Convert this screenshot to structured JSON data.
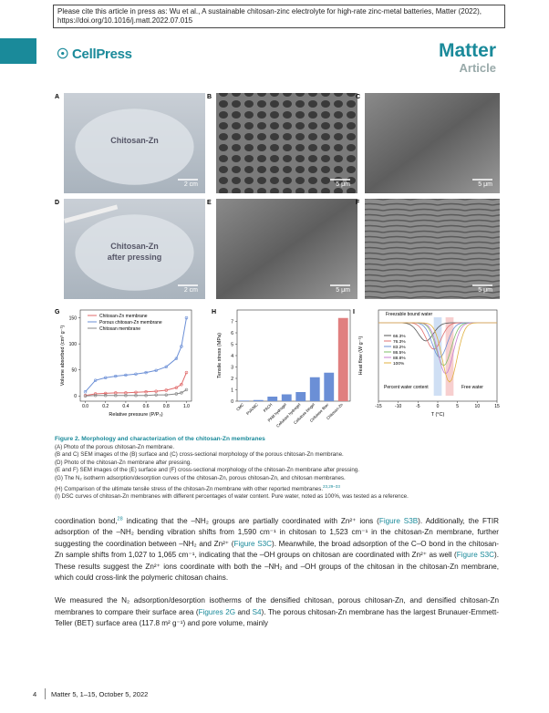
{
  "header": {
    "citation": "Please cite this article in press as: Wu et al., A sustainable chitosan-zinc electrolyte for high-rate zinc-metal batteries, Matter (2022), https://doi.org/10.1016/j.matt.2022.07.015",
    "publisher": "CellPress",
    "journal": "Matter",
    "article_type": "Article"
  },
  "figure": {
    "panels": [
      {
        "label": "A",
        "texts": [
          "Chitosan-Zn",
          "2 cm"
        ]
      },
      {
        "label": "B",
        "texts": [
          "5 μm"
        ]
      },
      {
        "label": "C",
        "texts": [
          "5 μm"
        ]
      },
      {
        "label": "D",
        "texts": [
          "Chitosan-Zn",
          "after pressing",
          "2 cm"
        ]
      },
      {
        "label": "E",
        "texts": [
          "5 μm"
        ]
      },
      {
        "label": "F",
        "texts": [
          "5 μm"
        ]
      }
    ],
    "charts": [
      {
        "type": "line",
        "label": "G",
        "xlabel": "Relative pressure (P/P₀)",
        "ylabel": "Volume absorbed (cm³ g⁻¹)",
        "x": [
          0,
          0.1,
          0.2,
          0.3,
          0.4,
          0.5,
          0.6,
          0.7,
          0.8,
          0.9,
          0.95,
          1.0
        ],
        "xlim": [
          -0.05,
          1.05
        ],
        "xticks": [
          {
            "value": 0,
            "label": "0.0"
          },
          0.2,
          0.4,
          0.6,
          0.8,
          {
            "value": 1,
            "label": "1.0"
          }
        ],
        "ylim": [
          -10,
          165
        ],
        "yticks": [
          0,
          50,
          100,
          150
        ],
        "series": [
          {
            "name": "Chitosan-Zn membrane",
            "color": "#e06a6a",
            "values": [
              1,
              4,
              5,
              6,
              6,
              7,
              8,
              9,
              11,
              16,
              22,
              45
            ]
          },
          {
            "name": "Porous chitosan-Zn membrane",
            "color": "#6b8fd6",
            "values": [
              8,
              30,
              35,
              38,
              40,
              42,
              45,
              49,
              56,
              72,
              95,
              150
            ]
          },
          {
            "name": "Chitosan membrane",
            "color": "#888888",
            "values": [
              0,
              1,
              1,
              1,
              1,
              1,
              1,
              2,
              2,
              4,
              6,
              12
            ]
          }
        ]
      },
      {
        "type": "bar",
        "label": "H",
        "ylabel": "Tensile stress (MPa)",
        "categories": [
          "CMC",
          "PVA/MC",
          "PACH",
          "PAM hydrogel",
          "Cellulose hydrogel",
          "Cellulose bingel",
          "Cellulose fiber",
          "Chitosan-Zn"
        ],
        "values": [
          0.05,
          0.1,
          0.4,
          0.6,
          0.8,
          2.1,
          2.5,
          7.3
        ],
        "colors": [
          "#6b8fd6",
          "#6b8fd6",
          "#6b8fd6",
          "#6b8fd6",
          "#6b8fd6",
          "#6b8fd6",
          "#6b8fd6",
          "#e07f7f"
        ],
        "ylim": [
          0,
          8
        ],
        "yticks": [
          0,
          1,
          2,
          3,
          4,
          5,
          6,
          7
        ]
      },
      {
        "type": "dsc",
        "label": "I",
        "xlabel": "T (°C)",
        "ylabel": "Heat flow (W g⁻¹)",
        "xlim": [
          -15,
          15
        ],
        "xticks": [
          -15,
          -10,
          -5,
          0,
          5,
          10,
          15
        ],
        "annotations": [
          "Freezable bound water",
          "Percent water content",
          "Free water"
        ],
        "series": [
          {
            "name": "66.3%",
            "color": "#555555",
            "peak": -3
          },
          {
            "name": "76.3%",
            "color": "#e07070",
            "peak": -1
          },
          {
            "name": "83.2%",
            "color": "#6b8fd6",
            "peak": 0.5
          },
          {
            "name": "86.5%",
            "color": "#7fbf6a",
            "peak": 1.5
          },
          {
            "name": "88.8%",
            "color": "#c77fd1",
            "peak": 2
          },
          {
            "name": "100%",
            "color": "#e0b040",
            "peak": 3
          }
        ]
      }
    ],
    "caption": {
      "title": "Figure 2. Morphology and characterization of the chitosan-Zn membranes",
      "lines": [
        {
          "text": "(A) Photo of the porous chitosan-Zn membrane."
        },
        {
          "text": "(B and C) SEM images of the (B) surface and (C) cross-sectional morphology of the porous chitosan-Zn membrane."
        },
        {
          "text": "(D) Photo of the chitosan-Zn membrane after pressing."
        },
        {
          "text": "(E and F) SEM images of the (E) surface and (F) cross-sectional morphology of the chitosan-Zn membrane after pressing."
        },
        {
          "text": "(G) The N₂ isotherm adsorption/desorption curves of the chitosan-Zn, porous chitosan-Zn, and chitosan membranes."
        },
        {
          "text": "(H) Comparison of the ultimate tensile stress of the chitosan-Zn membrane with other reported membranes.",
          "ref": "23,29–33"
        },
        {
          "text": "(I) DSC curves of chitosan-Zn membranes with different percentages of water content. Pure water, noted as 100%, was tested as a reference."
        }
      ]
    }
  },
  "body": [
    [
      {
        "text": "coordination bond,"
      },
      {
        "sup": "28"
      },
      {
        "text": " indicating that the –NH₂ groups are partially coordinated with Zn²⁺ ions ("
      },
      {
        "link": "Figure S3B"
      },
      {
        "text": "). Additionally, the FTIR adsorption of the –NH₂ bending vibration shifts from 1,590 cm⁻¹ in chitosan to 1,523 cm⁻¹ in the chitosan-Zn membrane, further suggesting the coordination between –NH₂ and Zn²⁺ ("
      },
      {
        "link": "Figure S3C"
      },
      {
        "text": "). Meanwhile, the broad adsorption of the C–O bond in the chitosan-Zn sample shifts from 1,027 to 1,065 cm⁻¹, indicating that the –OH groups on chitosan are coordinated with Zn²⁺ as well ("
      },
      {
        "link": "Figure S3C"
      },
      {
        "text": "). These results suggest the Zn²⁺ ions coordinate with both the –NH₂ and –OH groups of the chitosan in the chitosan-Zn membrane, which could cross-link the polymeric chitosan chains."
      }
    ],
    [
      {
        "text": "We measured the N₂ adsorption/desorption isotherms of the densified chitosan, porous chitosan-Zn, and densified chitosan-Zn membranes to compare their surface area ("
      },
      {
        "link": "Figures 2G"
      },
      {
        "text": " and "
      },
      {
        "link": "S4"
      },
      {
        "text": "). The porous chitosan-Zn membrane has the largest Brunauer-Emmett-Teller (BET) surface area (117.8 m² g⁻¹) and pore volume, mainly"
      }
    ]
  ],
  "footer": {
    "page": "4",
    "journal_info": "Matter 5, 1–15, October 5, 2022"
  }
}
